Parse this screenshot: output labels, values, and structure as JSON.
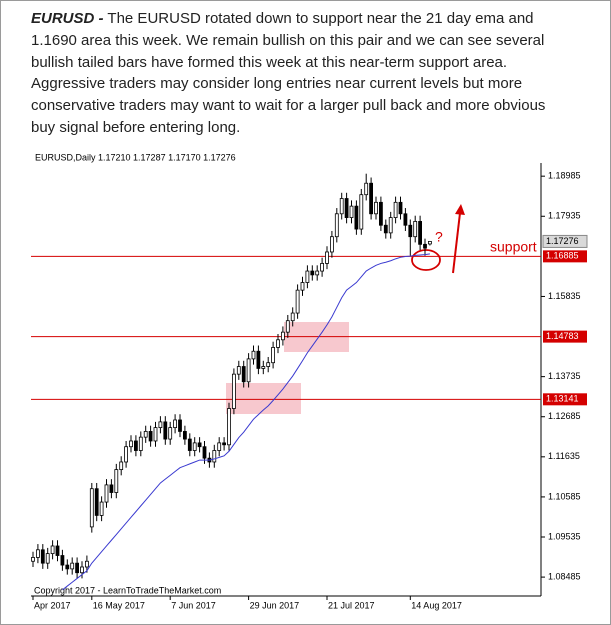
{
  "commentary": {
    "lead": "EURUSD -",
    "lines": [
      "The EURUSD rotated down to support near the 21 day ema and",
      "1.1690 area this week. We remain bullish on this pair and we can see several",
      "bullish tailed bars have formed this week at this near-term support area.",
      "Aggressive traders may consider long entries near current levels but more",
      "conservative traders may want to wait for a larger pull back and more obvious",
      "buy signal before entering long."
    ]
  },
  "chart_data": {
    "type": "candlestick",
    "header": "EURUSD,Daily 1.17210 1.17287 1.17170 1.17276",
    "footer": "Copyright 2017 - LearnToTradeTheMarket.com",
    "annotations": {
      "support": "support",
      "question": "?"
    },
    "bull_color": "#ffffff",
    "bear_color": "#000000",
    "ema_color": "#3a3ad0",
    "level_color": "#d40000",
    "ylim": [
      1.0799,
      1.1933
    ],
    "yticks": [
      1.18985,
      1.17935,
      1.15835,
      1.13735,
      1.12685,
      1.11635,
      1.10585,
      1.09535,
      1.08485
    ],
    "last_price": 1.17276,
    "levels": [
      1.16885,
      1.14783,
      1.13141
    ],
    "categories": [
      "Apr 2017",
      null,
      null,
      null,
      null,
      null,
      null,
      null,
      null,
      null,
      null,
      null,
      "16 May 2017",
      null,
      null,
      null,
      null,
      null,
      null,
      null,
      null,
      null,
      null,
      null,
      null,
      null,
      null,
      null,
      "7 Jun 2017",
      null,
      null,
      null,
      null,
      null,
      null,
      null,
      null,
      null,
      null,
      null,
      null,
      null,
      null,
      null,
      "29 Jun 2017",
      null,
      null,
      null,
      null,
      null,
      null,
      null,
      null,
      null,
      null,
      null,
      null,
      null,
      null,
      null,
      "21 Jul 2017",
      null,
      null,
      null,
      null,
      null,
      null,
      null,
      null,
      null,
      null,
      null,
      null,
      null,
      null,
      null,
      null,
      "14 Aug 2017",
      null,
      null,
      null,
      null
    ],
    "ohlc": [
      [
        1.089,
        1.0915,
        1.0875,
        1.09
      ],
      [
        1.09,
        1.0935,
        1.0885,
        1.092
      ],
      [
        1.092,
        1.0935,
        1.087,
        1.0885
      ],
      [
        1.0885,
        1.0925,
        1.087,
        1.091
      ],
      [
        1.091,
        1.0945,
        1.0895,
        1.093
      ],
      [
        1.093,
        1.0945,
        1.089,
        1.0905
      ],
      [
        1.0905,
        1.092,
        1.0865,
        1.088
      ],
      [
        1.088,
        1.0895,
        1.0855,
        1.087
      ],
      [
        1.087,
        1.09,
        1.0855,
        1.0885
      ],
      [
        1.0885,
        1.09,
        1.0845,
        1.086
      ],
      [
        1.086,
        1.089,
        1.0845,
        1.0875
      ],
      [
        1.0875,
        1.0905,
        1.086,
        1.089
      ],
      [
        1.098,
        1.1095,
        1.0965,
        1.108
      ],
      [
        1.108,
        1.1095,
        1.0995,
        1.101
      ],
      [
        1.101,
        1.106,
        1.0995,
        1.1045
      ],
      [
        1.1045,
        1.1105,
        1.103,
        1.109
      ],
      [
        1.109,
        1.1105,
        1.1055,
        1.107
      ],
      [
        1.107,
        1.1145,
        1.1055,
        1.113
      ],
      [
        1.113,
        1.1165,
        1.1115,
        1.115
      ],
      [
        1.115,
        1.1205,
        1.1135,
        1.119
      ],
      [
        1.119,
        1.122,
        1.1175,
        1.1205
      ],
      [
        1.1205,
        1.122,
        1.1165,
        1.118
      ],
      [
        1.118,
        1.123,
        1.1165,
        1.1215
      ],
      [
        1.1215,
        1.1245,
        1.12,
        1.123
      ],
      [
        1.123,
        1.1245,
        1.119,
        1.1205
      ],
      [
        1.1205,
        1.1255,
        1.119,
        1.124
      ],
      [
        1.124,
        1.127,
        1.1225,
        1.1255
      ],
      [
        1.1255,
        1.127,
        1.1195,
        1.121
      ],
      [
        1.121,
        1.1255,
        1.1195,
        1.124
      ],
      [
        1.124,
        1.1275,
        1.1225,
        1.126
      ],
      [
        1.126,
        1.1275,
        1.1215,
        1.123
      ],
      [
        1.123,
        1.1245,
        1.1195,
        1.121
      ],
      [
        1.121,
        1.1225,
        1.1165,
        1.118
      ],
      [
        1.118,
        1.1215,
        1.1165,
        1.12
      ],
      [
        1.12,
        1.1215,
        1.1175,
        1.119
      ],
      [
        1.119,
        1.1205,
        1.1145,
        1.116
      ],
      [
        1.116,
        1.1175,
        1.1135,
        1.115
      ],
      [
        1.115,
        1.1195,
        1.1135,
        1.118
      ],
      [
        1.118,
        1.1215,
        1.1165,
        1.12
      ],
      [
        1.12,
        1.1215,
        1.118,
        1.1195
      ],
      [
        1.1195,
        1.1305,
        1.118,
        1.129
      ],
      [
        1.129,
        1.1395,
        1.1275,
        1.138
      ],
      [
        1.138,
        1.1415,
        1.1365,
        1.14
      ],
      [
        1.14,
        1.1415,
        1.1345,
        1.136
      ],
      [
        1.136,
        1.1435,
        1.1345,
        1.142
      ],
      [
        1.142,
        1.1455,
        1.1405,
        1.144
      ],
      [
        1.144,
        1.1455,
        1.138,
        1.1395
      ],
      [
        1.1395,
        1.1415,
        1.138,
        1.14
      ],
      [
        1.14,
        1.1425,
        1.1385,
        1.141
      ],
      [
        1.141,
        1.1465,
        1.1395,
        1.145
      ],
      [
        1.145,
        1.1485,
        1.1435,
        1.147
      ],
      [
        1.147,
        1.1505,
        1.1455,
        1.149
      ],
      [
        1.149,
        1.1535,
        1.1475,
        1.152
      ],
      [
        1.152,
        1.1555,
        1.1505,
        1.154
      ],
      [
        1.154,
        1.1615,
        1.1525,
        1.16
      ],
      [
        1.16,
        1.1635,
        1.1585,
        1.162
      ],
      [
        1.162,
        1.1665,
        1.1605,
        1.165
      ],
      [
        1.165,
        1.1665,
        1.1625,
        1.164
      ],
      [
        1.164,
        1.1665,
        1.1625,
        1.165
      ],
      [
        1.165,
        1.1685,
        1.1635,
        1.167
      ],
      [
        1.167,
        1.1715,
        1.1655,
        1.17
      ],
      [
        1.17,
        1.1755,
        1.1685,
        1.174
      ],
      [
        1.174,
        1.1815,
        1.1725,
        1.18
      ],
      [
        1.18,
        1.1855,
        1.1785,
        1.184
      ],
      [
        1.184,
        1.1855,
        1.1775,
        1.179
      ],
      [
        1.179,
        1.1835,
        1.1775,
        1.182
      ],
      [
        1.182,
        1.1835,
        1.1745,
        1.176
      ],
      [
        1.176,
        1.1865,
        1.1745,
        1.185
      ],
      [
        1.185,
        1.1905,
        1.1835,
        1.188
      ],
      [
        1.188,
        1.1895,
        1.1785,
        1.18
      ],
      [
        1.18,
        1.1845,
        1.1785,
        1.183
      ],
      [
        1.183,
        1.1845,
        1.1755,
        1.177
      ],
      [
        1.177,
        1.1785,
        1.1735,
        1.175
      ],
      [
        1.175,
        1.1805,
        1.1735,
        1.179
      ],
      [
        1.179,
        1.1845,
        1.1775,
        1.183
      ],
      [
        1.183,
        1.1845,
        1.1785,
        1.18
      ],
      [
        1.18,
        1.1815,
        1.1755,
        1.177
      ],
      [
        1.177,
        1.1785,
        1.169,
        1.174
      ],
      [
        1.174,
        1.1795,
        1.1725,
        1.178
      ],
      [
        1.178,
        1.1795,
        1.1705,
        1.172
      ],
      [
        1.172,
        1.1735,
        1.169,
        1.171
      ],
      [
        1.1721,
        1.17287,
        1.1717,
        1.17276
      ]
    ],
    "ema": [
      null,
      null,
      null,
      null,
      null,
      null,
      1.0815,
      1.0825,
      1.0835,
      1.0845,
      1.0855,
      1.0865,
      1.0885,
      1.09,
      1.0915,
      1.093,
      1.0945,
      1.096,
      1.0975,
      1.099,
      1.1005,
      1.102,
      1.1035,
      1.105,
      1.1065,
      1.108,
      1.1095,
      1.1105,
      1.1115,
      1.1125,
      1.1135,
      1.114,
      1.1145,
      1.115,
      1.1155,
      1.1155,
      1.1155,
      1.1158,
      1.1162,
      1.1166,
      1.1178,
      1.1196,
      1.1214,
      1.1228,
      1.1245,
      1.1262,
      1.1274,
      1.1286,
      1.1297,
      1.1311,
      1.1326,
      1.1341,
      1.1358,
      1.1375,
      1.1395,
      1.1415,
      1.1436,
      1.1454,
      1.1472,
      1.149,
      1.1509,
      1.153,
      1.1555,
      1.158,
      1.16,
      1.161,
      1.162,
      1.1635,
      1.165,
      1.1658,
      1.1665,
      1.167,
      1.1673,
      1.1677,
      1.1682,
      1.1686,
      1.1688,
      1.1689,
      1.1691,
      1.1692,
      1.1693,
      1.1695
    ]
  }
}
